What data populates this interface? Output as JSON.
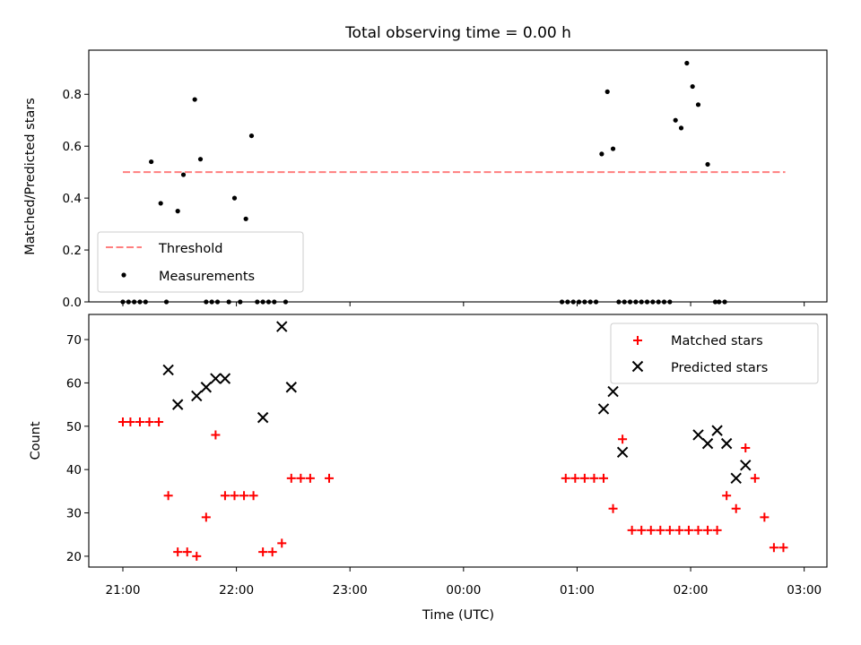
{
  "chart_data": [
    {
      "type": "scatter",
      "title": "Total observing time = 0.00 h",
      "xlabel": "",
      "ylabel": "Matched/Predicted stars",
      "xlim": [
        "20:42",
        "03:12"
      ],
      "ylim": [
        0,
        0.97
      ],
      "yticks": [
        0.0,
        0.2,
        0.4,
        0.6,
        0.8
      ],
      "ytick_labels": [
        "0.0",
        "0.2",
        "0.4",
        "0.6",
        "0.8"
      ],
      "xticks": [
        "21:00",
        "22:00",
        "23:00",
        "00:00",
        "01:00",
        "02:00",
        "03:00"
      ],
      "show_xtick_labels": false,
      "legend": {
        "location": "lower left",
        "entries": [
          {
            "label": "Threshold",
            "style": "dashed-line",
            "color": "#ff7f7f"
          },
          {
            "label": "Measurements",
            "style": "dot",
            "color": "#000000"
          }
        ]
      },
      "threshold": {
        "value": 0.5,
        "x_start": "21:00",
        "x_end": "02:50",
        "color": "#ff7f7f"
      },
      "measurements": {
        "color": "#000000",
        "x": [
          "21:00",
          "21:03",
          "21:06",
          "21:09",
          "21:12",
          "21:15",
          "21:20",
          "21:23",
          "21:29",
          "21:32",
          "21:38",
          "21:41",
          "21:44",
          "21:47",
          "21:50",
          "21:56",
          "21:59",
          "22:02",
          "22:05",
          "22:08",
          "22:11",
          "22:14",
          "22:17",
          "22:20",
          "22:26",
          "00:52",
          "00:55",
          "00:58",
          "01:01",
          "01:04",
          "01:07",
          "01:10",
          "01:13",
          "01:16",
          "01:19",
          "01:22",
          "01:25",
          "01:28",
          "01:31",
          "01:34",
          "01:37",
          "01:40",
          "01:43",
          "01:46",
          "01:49",
          "01:52",
          "01:55",
          "01:58",
          "02:01",
          "02:04",
          "02:09",
          "02:13",
          "02:15",
          "02:18"
        ],
        "y": [
          0,
          0,
          0,
          0,
          0,
          0.54,
          0.38,
          0,
          0.35,
          0.49,
          0.78,
          0.55,
          0,
          0,
          0,
          0,
          0.4,
          0,
          0.32,
          0.64,
          0,
          0,
          0,
          0,
          0,
          0,
          0,
          0,
          0,
          0,
          0,
          0,
          0.57,
          0.81,
          0.59,
          0,
          0,
          0,
          0,
          0,
          0,
          0,
          0,
          0,
          0,
          0.7,
          0.67,
          0.92,
          0.83,
          0.76,
          0.53,
          0,
          0,
          0
        ]
      }
    },
    {
      "type": "scatter",
      "title": "",
      "xlabel": "Time (UTC)",
      "ylabel": "Count",
      "xlim": [
        "20:42",
        "03:12"
      ],
      "ylim": [
        17.5,
        75.8
      ],
      "yticks": [
        20,
        30,
        40,
        50,
        60,
        70
      ],
      "ytick_labels": [
        "20",
        "30",
        "40",
        "50",
        "60",
        "70"
      ],
      "xticks": [
        "21:00",
        "22:00",
        "23:00",
        "00:00",
        "01:00",
        "02:00",
        "03:00"
      ],
      "xtick_labels": [
        "21:00",
        "22:00",
        "23:00",
        "00:00",
        "01:00",
        "02:00",
        "03:00"
      ],
      "legend": {
        "location": "upper right",
        "entries": [
          {
            "label": "Matched stars",
            "style": "plus",
            "color": "#ff0000"
          },
          {
            "label": "Predicted stars",
            "style": "x",
            "color": "#000000"
          }
        ]
      },
      "series": [
        {
          "name": "Matched stars",
          "marker": "plus",
          "color": "#ff0000",
          "x": [
            "21:00",
            "21:04",
            "21:09",
            "21:14",
            "21:19",
            "21:24",
            "21:29",
            "21:34",
            "21:39",
            "21:44",
            "21:49",
            "21:54",
            "21:59",
            "22:04",
            "22:09",
            "22:14",
            "22:19",
            "22:24",
            "22:29",
            "22:34",
            "22:39",
            "22:49",
            "00:54",
            "00:59",
            "01:04",
            "01:09",
            "01:14",
            "01:19",
            "01:24",
            "01:29",
            "01:34",
            "01:39",
            "01:44",
            "01:49",
            "01:54",
            "01:59",
            "02:04",
            "02:09",
            "02:14",
            "02:19",
            "02:24",
            "02:29",
            "02:34",
            "02:39",
            "02:44",
            "02:49"
          ],
          "y": [
            51,
            51,
            51,
            51,
            51,
            34,
            21,
            21,
            20,
            29,
            48,
            34,
            34,
            34,
            34,
            21,
            21,
            23,
            38,
            38,
            38,
            38,
            38,
            38,
            38,
            38,
            38,
            31,
            47,
            26,
            26,
            26,
            26,
            26,
            26,
            26,
            26,
            26,
            26,
            34,
            31,
            45,
            38,
            29,
            22,
            22
          ]
        },
        {
          "name": "Predicted stars",
          "marker": "x",
          "color": "#000000",
          "x": [
            "21:24",
            "21:29",
            "21:39",
            "21:44",
            "21:49",
            "21:54",
            "22:14",
            "22:24",
            "22:29",
            "01:14",
            "01:19",
            "01:24",
            "02:04",
            "02:09",
            "02:14",
            "02:19",
            "02:24",
            "02:29"
          ],
          "y": [
            63,
            55,
            57,
            59,
            61,
            61,
            52,
            73,
            59,
            54,
            58,
            44,
            48,
            46,
            49,
            46,
            38,
            41
          ]
        }
      ]
    }
  ]
}
